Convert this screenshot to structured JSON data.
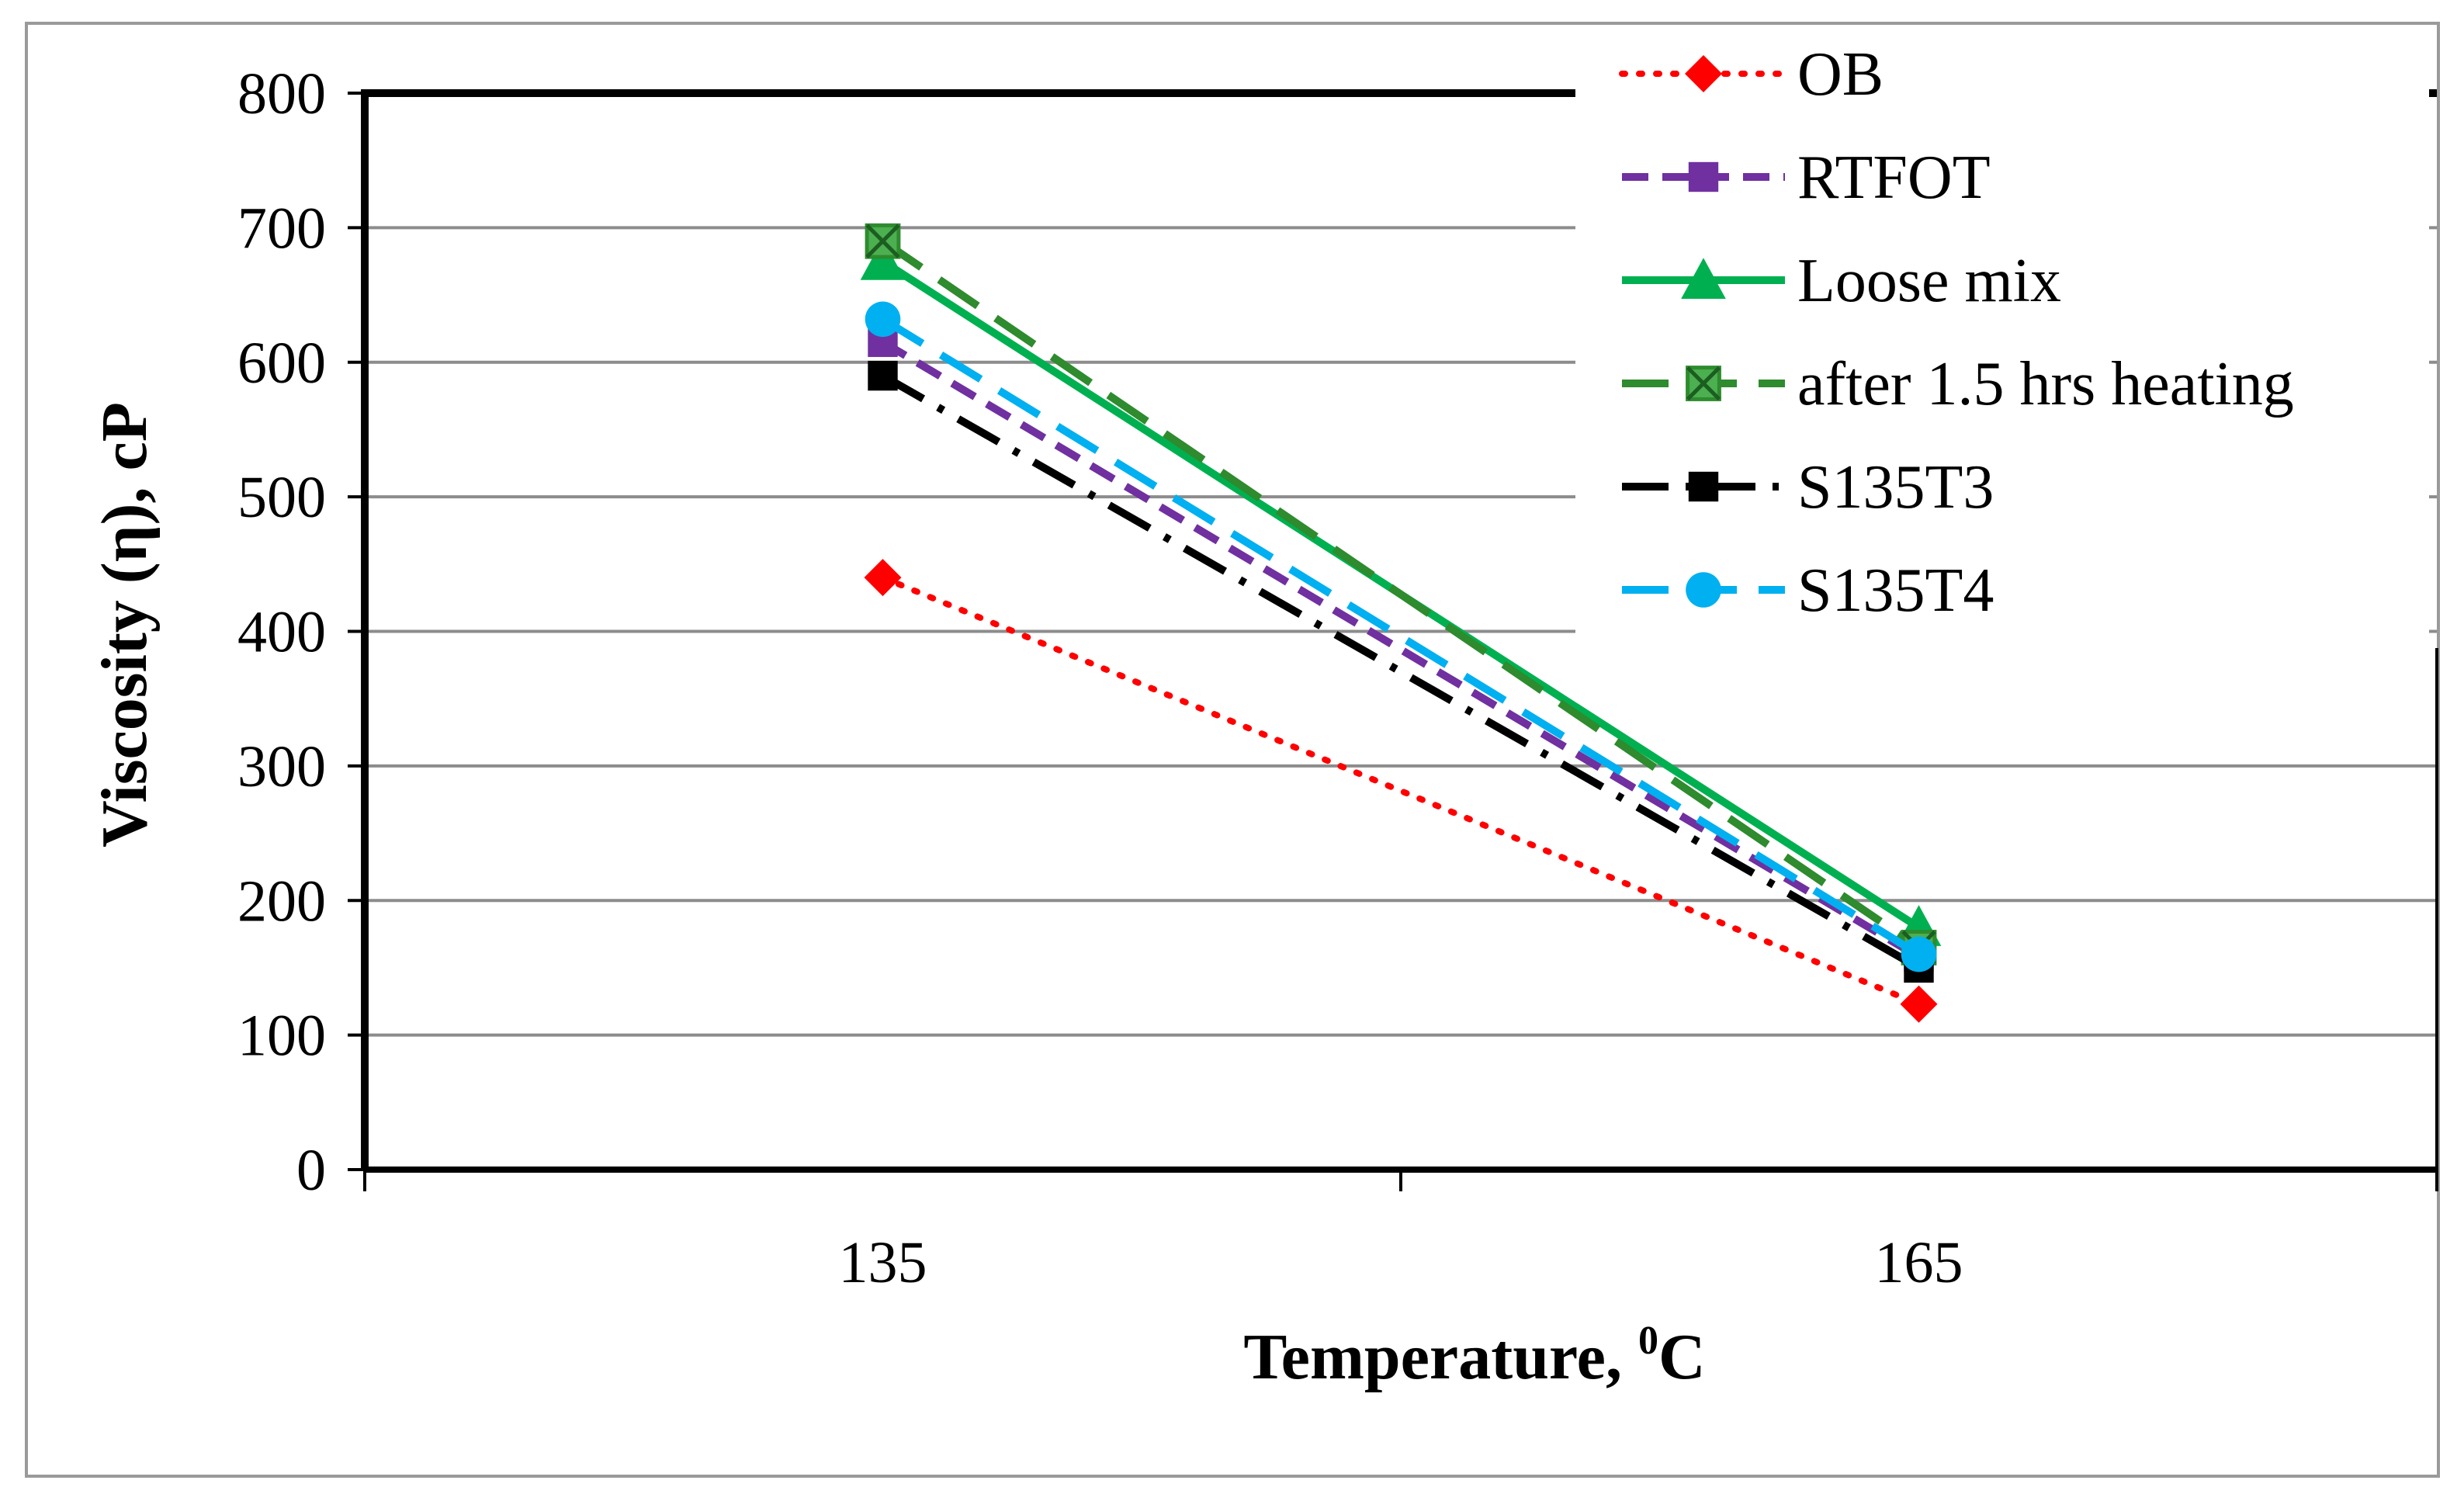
{
  "chart_data": {
    "type": "line",
    "title": "",
    "xlabel": "Temperature, ",
    "xlabel_sup": "0",
    "xlabel_unit": "C",
    "ylabel": "Viscosity (η), cP",
    "x_categories": [
      "135",
      "165"
    ],
    "ylim": [
      0,
      800
    ],
    "y_ticks": [
      "0",
      "100",
      "200",
      "300",
      "400",
      "500",
      "600",
      "700",
      "800"
    ],
    "grid": "horizontal",
    "legend_position": "top-right",
    "series": [
      {
        "name": "OB",
        "values": [
          440,
          123
        ],
        "color": "#ff0000",
        "dash": "dotted",
        "marker": "diamond"
      },
      {
        "name": "RTFOT",
        "values": [
          615,
          158
        ],
        "color": "#7030a0",
        "dash": "dashed",
        "marker": "square"
      },
      {
        "name": "Loose mix",
        "values": [
          675,
          180
        ],
        "color": "#00b050",
        "dash": "solid",
        "marker": "triangle"
      },
      {
        "name": "after 1.5 hrs heating",
        "values": [
          690,
          165
        ],
        "color": "#2e8b2e",
        "dash": "longdash",
        "marker": "x-square"
      },
      {
        "name": "S135T3",
        "values": [
          590,
          150
        ],
        "color": "#000000",
        "dash": "dashdot",
        "marker": "square"
      },
      {
        "name": "S135T4",
        "values": [
          632,
          160
        ],
        "color": "#00b0f0",
        "dash": "longdash",
        "marker": "circle"
      }
    ]
  }
}
